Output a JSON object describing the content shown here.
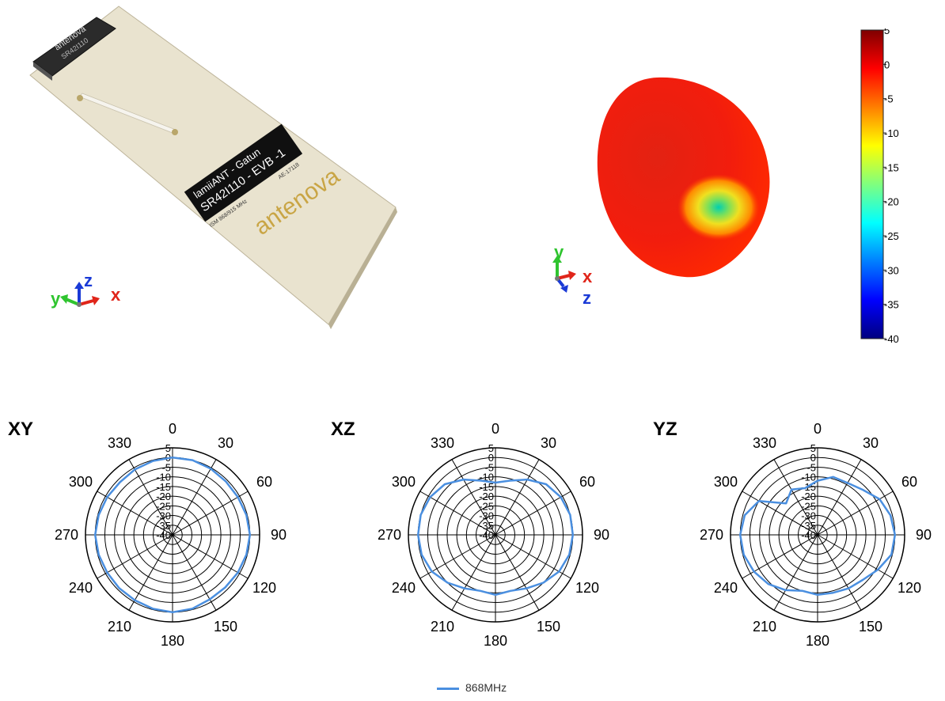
{
  "board": {
    "module_brand": "antenova",
    "module_part": "SR42I110",
    "label_line1": "lamiiANT - Gatun",
    "label_line2": "SR42I110 - EVB -1",
    "label_small_left": "ISM 868/915 MHz",
    "label_small_right": "AE-17118",
    "brand_logo": "antenova"
  },
  "axes_board": {
    "y": "y",
    "z": "z",
    "x": "x"
  },
  "axes_pattern": {
    "y": "y",
    "x": "x",
    "z": "z"
  },
  "colorbar": {
    "ticks": [
      "5",
      "0",
      "-5",
      "-10",
      "-15",
      "-20",
      "-25",
      "-30",
      "-35",
      "-40"
    ],
    "values": [
      5,
      0,
      -5,
      -10,
      -15,
      -20,
      -25,
      -30,
      -35,
      -40
    ],
    "colormap": [
      "#00007f",
      "#0000ff",
      "#007fff",
      "#00ffff",
      "#7fff7f",
      "#ffff00",
      "#ff7f00",
      "#ff0000",
      "#7f0000"
    ]
  },
  "chart_data": [
    {
      "type": "polar-line",
      "title": "XY",
      "theta_ticks": [
        "0",
        "30",
        "60",
        "90",
        "120",
        "150",
        "180",
        "210",
        "240",
        "270",
        "300",
        "330"
      ],
      "r_ticks": [
        "5",
        "0",
        "-5",
        "-10",
        "-15",
        "-20",
        "-25",
        "-30",
        "-35",
        "-40"
      ],
      "rlim": [
        -40,
        5
      ],
      "theta": [
        0,
        15,
        30,
        45,
        60,
        75,
        90,
        105,
        120,
        135,
        150,
        165,
        180,
        195,
        210,
        225,
        240,
        255,
        270,
        285,
        300,
        315,
        330,
        345
      ],
      "series": [
        {
          "name": "868MHz",
          "color": "#4a8fe0",
          "values": [
            0,
            0,
            -0.5,
            -1,
            -1,
            -0.5,
            0,
            -0.5,
            -1,
            -1.5,
            -1.5,
            -0.5,
            0,
            -0.5,
            -1,
            -1,
            -1,
            -0.5,
            0,
            -0.5,
            -1,
            -1.5,
            -1,
            -0.5
          ]
        }
      ]
    },
    {
      "type": "polar-line",
      "title": "XZ",
      "theta_ticks": [
        "0",
        "30",
        "60",
        "90",
        "120",
        "150",
        "180",
        "210",
        "240",
        "270",
        "300",
        "330"
      ],
      "r_ticks": [
        "5",
        "0",
        "-5",
        "-10",
        "-15",
        "-20",
        "-25",
        "-30",
        "-35",
        "-40"
      ],
      "rlim": [
        -40,
        5
      ],
      "theta": [
        0,
        15,
        30,
        45,
        60,
        75,
        90,
        105,
        120,
        135,
        150,
        165,
        180,
        195,
        210,
        225,
        240,
        255,
        270,
        285,
        300,
        315,
        330,
        345
      ],
      "series": [
        {
          "name": "868MHz",
          "color": "#4a8fe0",
          "values": [
            -13,
            -11,
            -7,
            -3,
            -1,
            0,
            0,
            -0.5,
            -2,
            -5,
            -8,
            -10,
            -9,
            -10,
            -8,
            -5,
            -2,
            -0.5,
            0,
            0,
            -1,
            -3,
            -7,
            -11
          ]
        }
      ]
    },
    {
      "type": "polar-line",
      "title": "YZ",
      "theta_ticks": [
        "0",
        "30",
        "60",
        "90",
        "120",
        "150",
        "180",
        "210",
        "240",
        "270",
        "300",
        "330"
      ],
      "r_ticks": [
        "5",
        "0",
        "-5",
        "-10",
        "-15",
        "-20",
        "-25",
        "-30",
        "-35",
        "-40"
      ],
      "rlim": [
        -40,
        5
      ],
      "theta": [
        0,
        15,
        30,
        45,
        60,
        75,
        90,
        105,
        120,
        135,
        150,
        165,
        180,
        195,
        210,
        225,
        240,
        255,
        270,
        285,
        300,
        315,
        330,
        345
      ],
      "series": [
        {
          "name": "868MHz",
          "color": "#4a8fe0",
          "values": [
            -12,
            -9,
            -9,
            -7,
            -3,
            -1,
            0,
            -0.5,
            -4,
            -7,
            -8,
            -9,
            -9,
            -10,
            -7,
            -4,
            -2,
            -0.5,
            0,
            -1,
            -5,
            -17,
            -13,
            -15
          ]
        }
      ]
    }
  ],
  "legend": {
    "label": "868MHz",
    "color": "#4a8fe0"
  }
}
